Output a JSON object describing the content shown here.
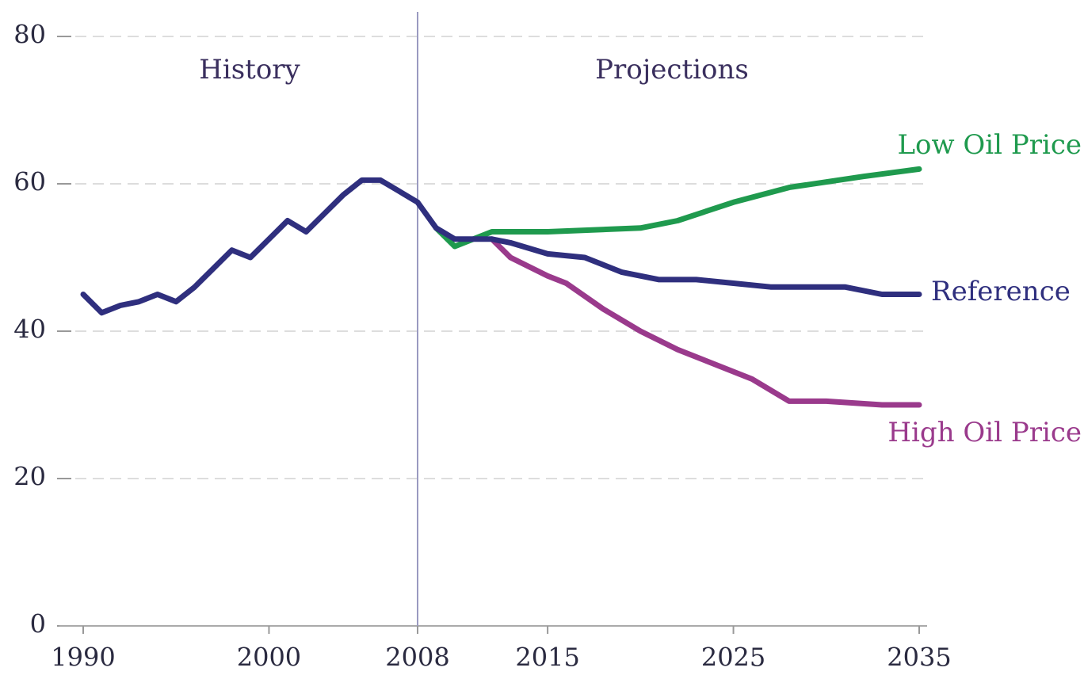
{
  "chart_data": {
    "type": "line",
    "annotations": [
      "History",
      "Projections"
    ],
    "divider_x": 2008,
    "xlim": [
      1990,
      2035
    ],
    "xticks": [
      1990,
      2000,
      2008,
      2015,
      2025,
      2035
    ],
    "ylim": [
      0,
      80
    ],
    "yticks": [
      0,
      20,
      40,
      60,
      80
    ],
    "grid": true,
    "series": [
      {
        "name": "Reference",
        "color": "#2f2f7e",
        "x": [
          1990,
          1991,
          1992,
          1993,
          1994,
          1995,
          1996,
          1997,
          1998,
          1999,
          2000,
          2001,
          2002,
          2003,
          2004,
          2005,
          2006,
          2007,
          2008,
          2009,
          2010,
          2011,
          2012,
          2013,
          2015,
          2017,
          2019,
          2021,
          2023,
          2025,
          2027,
          2029,
          2031,
          2033,
          2035
        ],
        "values": [
          45,
          42.5,
          43.5,
          44,
          45,
          44,
          46,
          48.5,
          51,
          50,
          52.5,
          55,
          53.5,
          56,
          58.5,
          60.5,
          60.5,
          59,
          57.5,
          54,
          52.5,
          52.5,
          52.5,
          52,
          50.5,
          50,
          48,
          47,
          47,
          46.5,
          46,
          46,
          46,
          45,
          45
        ]
      },
      {
        "name": "Low Oil Price",
        "color": "#1f9a4e",
        "x": [
          2009,
          2010,
          2011,
          2012,
          2015,
          2020,
          2022,
          2025,
          2028,
          2032,
          2035
        ],
        "values": [
          54,
          51.5,
          52.5,
          53.5,
          53.5,
          54,
          55,
          57.5,
          59.5,
          61,
          62
        ]
      },
      {
        "name": "High Oil Price",
        "color": "#9a3a8c",
        "x": [
          2012,
          2013,
          2015,
          2016,
          2018,
          2020,
          2022,
          2025,
          2026,
          2028,
          2030,
          2033,
          2035
        ],
        "values": [
          52.5,
          50,
          47.5,
          46.5,
          43,
          40,
          37.5,
          34.5,
          33.5,
          30.5,
          30.5,
          30,
          30
        ]
      }
    ]
  }
}
